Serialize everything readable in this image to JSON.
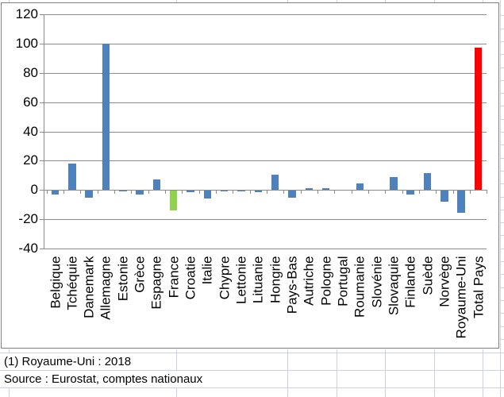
{
  "chart_data": {
    "type": "bar",
    "title": "",
    "xlabel": "",
    "ylabel": "",
    "categories": [
      "Belgique",
      "Tchéquie",
      "Danemark",
      "Allemagne",
      "Estonie",
      "Grèce",
      "Espagne",
      "France",
      "Croatie",
      "Italie",
      "Chypre",
      "Lettonie",
      "Lituanie",
      "Hongrie",
      "Pays-Bas",
      "Autriche",
      "Pologne",
      "Portugal",
      "Roumanie",
      "Slovénie",
      "Slovaquie",
      "Finlande",
      "Suède",
      "Norvège",
      "Royaume-Uni",
      "Total Pays"
    ],
    "values": [
      -3,
      18,
      -5,
      100,
      -1,
      -3,
      7,
      -14,
      -1.5,
      -6,
      -1,
      -1,
      -1.5,
      10.5,
      -5,
      1.5,
      1.5,
      0,
      4.5,
      0,
      9,
      -3,
      11.5,
      -8,
      -15.5,
      97.5
    ],
    "ylim": [
      -40,
      120
    ],
    "yticks": [
      120,
      100,
      80,
      60,
      40,
      20,
      0,
      -20,
      -40
    ],
    "grid": true,
    "legend_position": "none",
    "colors": {
      "default_bar": "#4f81bd",
      "green_bar": "#92d050",
      "red_bar": "#ff0000",
      "green_category": "France",
      "red_category": "Total Pays",
      "gridline": "#8c8c8c",
      "chart_border": "#7f7f7f",
      "sheet_gridline": "#ccd2e4"
    }
  },
  "notes": {
    "footnote": "(1) Royaume-Uni : 2018",
    "source": "Source : Eurostat, comptes nationaux"
  }
}
